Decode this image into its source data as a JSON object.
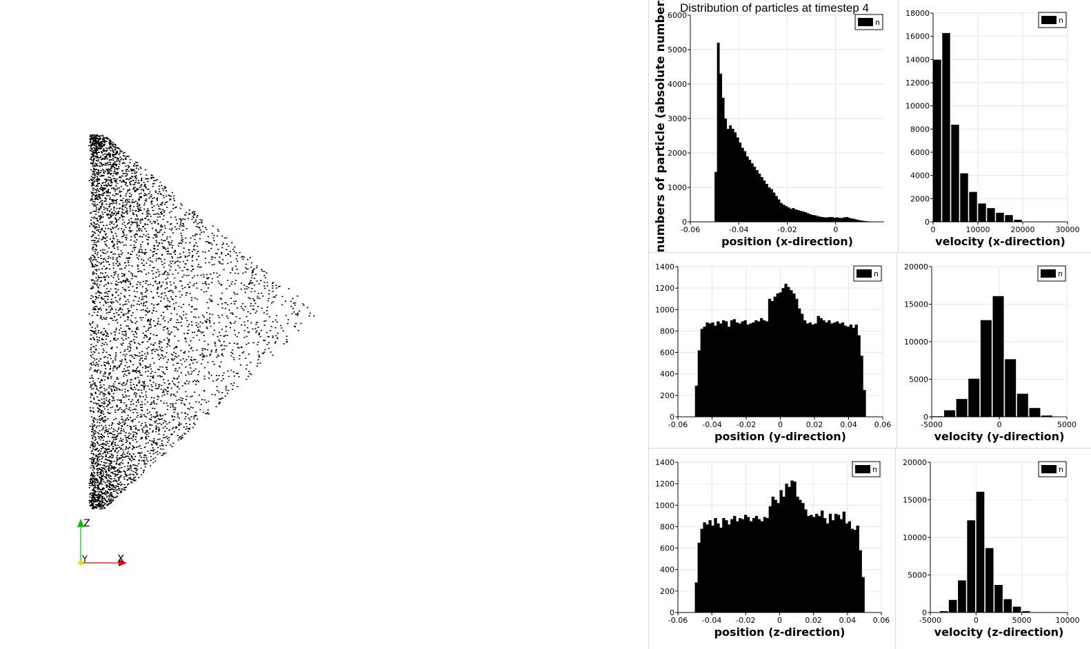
{
  "window": {
    "suptitle": "Distribution of particles at timestep 4",
    "shared_ylabel": "numbers of particle (absolute numbers)"
  },
  "viewport": {
    "axes_labels": {
      "z": "Z",
      "y": "Y",
      "x": "X"
    },
    "axis_colors": {
      "x": "#e00000",
      "y": "#e8e000",
      "z": "#00c000"
    },
    "point_color": "#000000"
  },
  "colors": {
    "bar": "#000000",
    "grid": "#e6e6e6",
    "divider": "#d8d8d8"
  },
  "chart_data": [
    {
      "id": "pos-x",
      "type": "bar",
      "xlabel": "position (x-direction)",
      "legend": "n",
      "legend_position": "top-right",
      "xlim": [
        -0.06,
        0.02
      ],
      "ylim": [
        0,
        6000
      ],
      "xticks": [
        -0.06,
        -0.04,
        -0.02,
        0
      ],
      "xtick_labels": [
        "-0.06",
        "-0.04",
        "-0.02",
        "0"
      ],
      "yticks": [
        0,
        1000,
        2000,
        3000,
        4000,
        5000,
        6000
      ],
      "ytick_labels": [
        "0",
        "1000",
        "2000",
        "3000",
        "4000",
        "5000",
        "6000"
      ],
      "grid": true,
      "bin_start": -0.05,
      "bin_end": 0.02,
      "values": [
        1450,
        5200,
        4300,
        3600,
        3000,
        2700,
        2800,
        2700,
        2600,
        2450,
        2300,
        2150,
        2050,
        1900,
        1800,
        1700,
        1600,
        1500,
        1400,
        1300,
        1200,
        1100,
        1000,
        950,
        850,
        750,
        650,
        550,
        500,
        460,
        420,
        380,
        400,
        360,
        340,
        320,
        300,
        280,
        250,
        220,
        200,
        190,
        170,
        150,
        140,
        130,
        130,
        140,
        140,
        120,
        130,
        120,
        110,
        130,
        140,
        120,
        100,
        90,
        70,
        50,
        40,
        30,
        20,
        15,
        10,
        5,
        3,
        2,
        1,
        1
      ]
    },
    {
      "id": "vel-x",
      "type": "bar",
      "xlabel": "velocity (x-direction)",
      "legend": "n",
      "legend_position": "top-right",
      "xlim": [
        0,
        30000
      ],
      "ylim": [
        0,
        18000
      ],
      "xticks": [
        0,
        10000,
        20000,
        30000
      ],
      "xtick_labels": [
        "0",
        "10000",
        "20000",
        "30000"
      ],
      "yticks": [
        0,
        2000,
        4000,
        6000,
        8000,
        10000,
        12000,
        14000,
        16000,
        18000
      ],
      "ytick_labels": [
        "0",
        "2000",
        "4000",
        "6000",
        "8000",
        "10000",
        "12000",
        "14000",
        "16000",
        "18000"
      ],
      "grid": true,
      "bin_start": 0,
      "bin_end": 22000,
      "values": [
        14000,
        16300,
        8400,
        4200,
        2600,
        1600,
        1200,
        800,
        600,
        200,
        20
      ]
    },
    {
      "id": "pos-y",
      "type": "bar",
      "xlabel": "position (y-direction)",
      "legend": "n",
      "legend_position": "top-right",
      "xlim": [
        -0.06,
        0.06
      ],
      "ylim": [
        0,
        1400
      ],
      "xticks": [
        -0.06,
        -0.04,
        -0.02,
        0,
        0.02,
        0.04,
        0.06
      ],
      "xtick_labels": [
        "-0.06",
        "-0.04",
        "-0.02",
        "0",
        "0.02",
        "0.04",
        "0.06"
      ],
      "yticks": [
        0,
        200,
        400,
        600,
        800,
        1000,
        1200,
        1400
      ],
      "ytick_labels": [
        "0",
        "200",
        "400",
        "600",
        "800",
        "1000",
        "1200",
        "1400"
      ],
      "grid": true,
      "bin_start": -0.05,
      "bin_end": 0.05,
      "values": [
        290,
        620,
        820,
        840,
        880,
        870,
        880,
        850,
        890,
        870,
        900,
        890,
        840,
        900,
        910,
        880,
        870,
        890,
        900,
        860,
        870,
        880,
        900,
        890,
        920,
        900,
        890,
        1100,
        1080,
        1120,
        1150,
        1160,
        1200,
        1240,
        1210,
        1180,
        1150,
        1100,
        1010,
        960,
        900,
        870,
        880,
        860,
        870,
        940,
        920,
        900,
        880,
        900,
        870,
        880,
        890,
        870,
        880,
        850,
        840,
        860,
        830,
        860,
        760,
        570,
        250
      ]
    },
    {
      "id": "vel-y",
      "type": "bar",
      "xlabel": "velocity (y-direction)",
      "legend": "n",
      "legend_position": "top-right",
      "xlim": [
        -5000,
        5000
      ],
      "ylim": [
        0,
        20000
      ],
      "xticks": [
        -5000,
        0,
        5000
      ],
      "xtick_labels": [
        "-5000",
        "0",
        "5000"
      ],
      "yticks": [
        0,
        5000,
        10000,
        15000,
        20000
      ],
      "ytick_labels": [
        "0",
        "5000",
        "10000",
        "15000",
        "20000"
      ],
      "grid": true,
      "bin_start": -5000,
      "bin_end": 4000,
      "values": [
        100,
        900,
        2400,
        5100,
        12900,
        16100,
        7700,
        3100,
        1200,
        200
      ]
    },
    {
      "id": "pos-z",
      "type": "bar",
      "xlabel": "position (z-direction)",
      "legend": "n",
      "legend_position": "top-right",
      "xlim": [
        -0.06,
        0.06
      ],
      "ylim": [
        0,
        1400
      ],
      "xticks": [
        -0.06,
        -0.04,
        -0.02,
        0,
        0.02,
        0.04,
        0.06
      ],
      "xtick_labels": [
        "-0.06",
        "-0.04",
        "-0.02",
        "0",
        "0.02",
        "0.04",
        "0.06"
      ],
      "yticks": [
        0,
        200,
        400,
        600,
        800,
        1000,
        1200,
        1400
      ],
      "ytick_labels": [
        "0",
        "200",
        "400",
        "600",
        "800",
        "1000",
        "1200",
        "1400"
      ],
      "grid": true,
      "bin_start": -0.05,
      "bin_end": 0.05,
      "values": [
        280,
        650,
        780,
        840,
        820,
        860,
        810,
        880,
        830,
        790,
        880,
        860,
        820,
        870,
        900,
        850,
        880,
        870,
        910,
        890,
        850,
        880,
        900,
        870,
        850,
        890,
        880,
        990,
        1080,
        1050,
        1020,
        1140,
        1080,
        1200,
        1170,
        1230,
        1220,
        1080,
        1050,
        1020,
        960,
        900,
        910,
        890,
        920,
        900,
        950,
        880,
        830,
        920,
        860,
        920,
        910,
        870,
        940,
        830,
        850,
        780,
        770,
        810,
        580,
        330
      ]
    },
    {
      "id": "vel-z",
      "type": "bar",
      "xlabel": "velocity (z-direction)",
      "legend": "n",
      "legend_position": "top-right",
      "xlim": [
        -5000,
        10000
      ],
      "ylim": [
        0,
        20000
      ],
      "xticks": [
        -5000,
        0,
        5000,
        10000
      ],
      "xtick_labels": [
        "-5000",
        "0",
        "5000",
        "10000"
      ],
      "yticks": [
        0,
        5000,
        10000,
        15000,
        20000
      ],
      "ytick_labels": [
        "0",
        "5000",
        "10000",
        "15000",
        "20000"
      ],
      "grid": true,
      "bin_start": -4000,
      "bin_end": 6000,
      "values": [
        200,
        1700,
        4300,
        12300,
        16100,
        8600,
        3700,
        1800,
        800,
        200
      ]
    }
  ]
}
